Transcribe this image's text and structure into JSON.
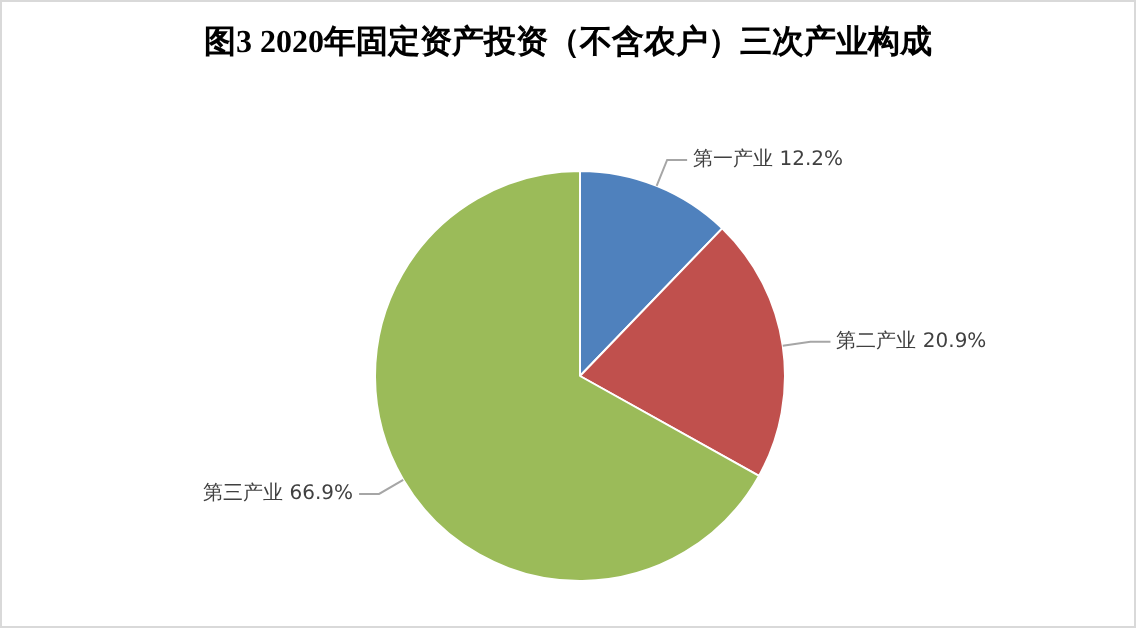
{
  "chart_data": {
    "type": "pie",
    "title": "图3 2020年固定资产投资（不含农户）三次产业构成",
    "categories": [
      "第一产业",
      "第二产业",
      "第三产业"
    ],
    "values": [
      12.2,
      20.9,
      66.9
    ],
    "value_labels": [
      "12.2%",
      "20.9%",
      "66.9%"
    ],
    "colors": [
      "#4f81bd",
      "#c0504d",
      "#9bbb59"
    ],
    "legend": false
  }
}
